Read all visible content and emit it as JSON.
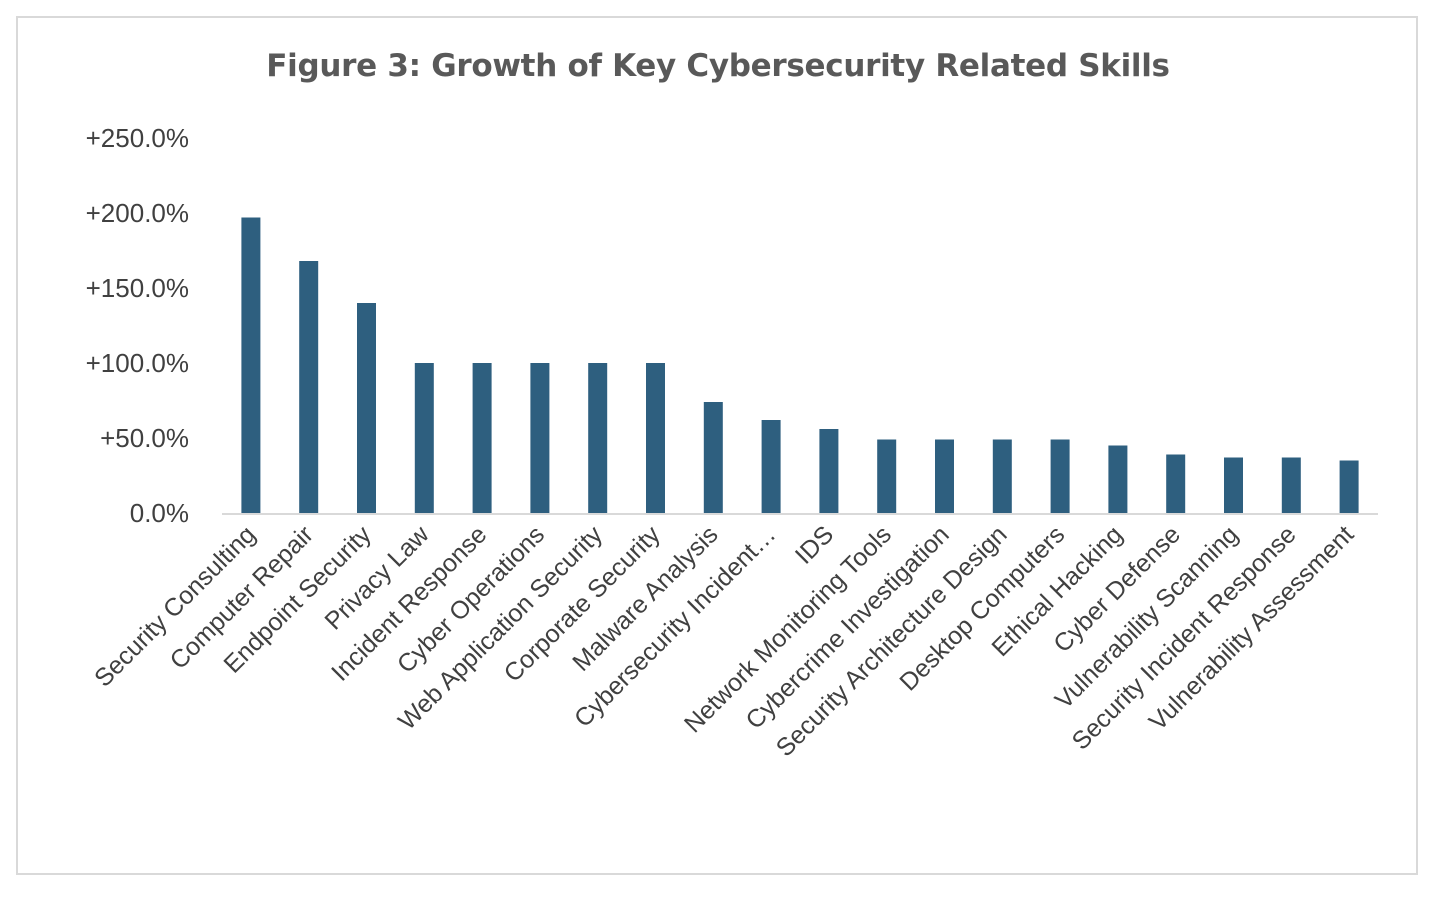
{
  "chart_data": {
    "type": "bar",
    "title": "Figure 3: Growth of Key Cybersecurity Related Skills",
    "xlabel": "",
    "ylabel": "",
    "ylim": [
      0,
      250
    ],
    "yticks": [
      0,
      50,
      100,
      150,
      200,
      250
    ],
    "ytick_labels": [
      "0.0%",
      "+50.0%",
      "+100.0%",
      "+150.0%",
      "+200.0%",
      "+250.0%"
    ],
    "grid": false,
    "bar_color": "#2e5f7f",
    "categories": [
      "Security Consulting",
      "Computer Repair",
      "Endpoint Security",
      "Privacy Law",
      "Incident Response",
      "Cyber Operations",
      "Web Application Security",
      "Corporate Security",
      "Malware Analysis",
      "Cybersecurity Incident…",
      "IDS",
      "Network Monitoring Tools",
      "Cybercrime Investigation",
      "Security Architecture Design",
      "Desktop Computers",
      "Ethical Hacking",
      "Cyber Defense",
      "Vulnerability Scanning",
      "Security Incident Response",
      "Vulnerability Assessment"
    ],
    "values": [
      197,
      168,
      140,
      100,
      100,
      100,
      100,
      100,
      74,
      62,
      56,
      49,
      49,
      49,
      49,
      45,
      39,
      37,
      37,
      35
    ]
  }
}
